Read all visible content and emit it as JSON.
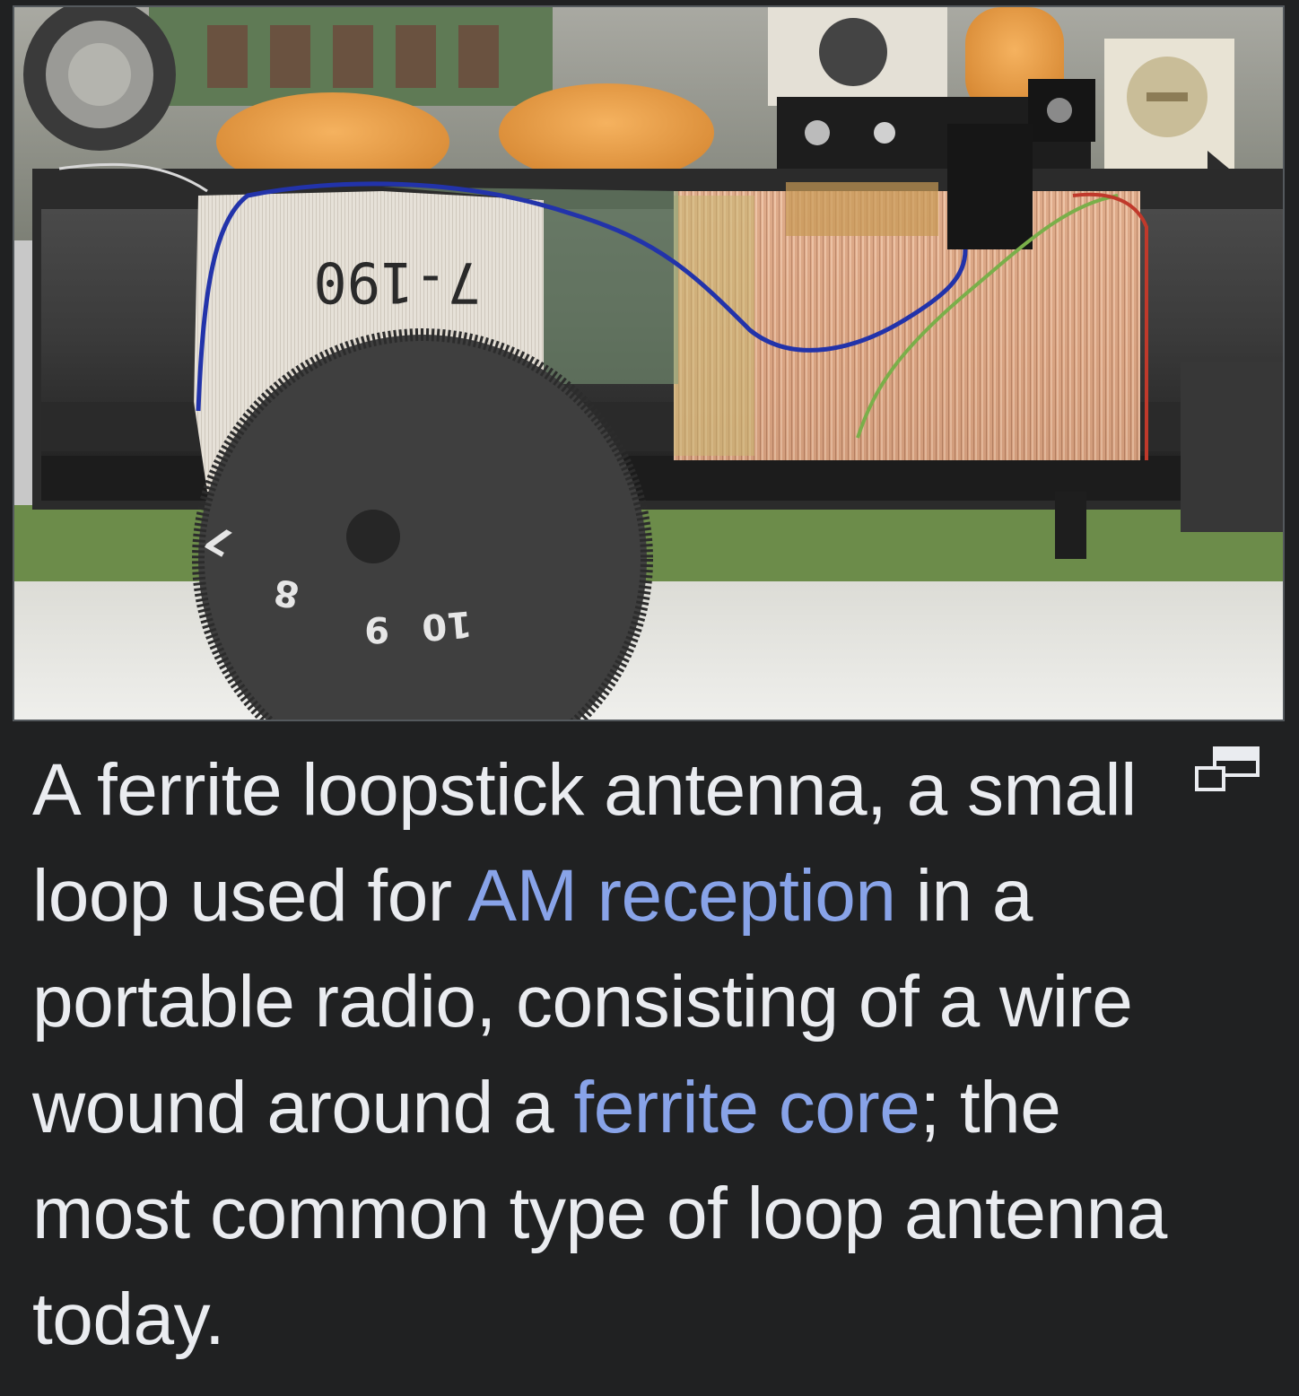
{
  "image": {
    "alt": "Ferrite loopstick antenna photograph",
    "tape_label": "7-190",
    "dial_numbers": [
      "7",
      "8",
      "9",
      "10"
    ]
  },
  "caption": {
    "part1": "A ferrite loopstick antenna, a small loop used for ",
    "link1": "AM reception",
    "part2": " in a portable radio, consisting of a wire wound around a ",
    "link2": "ferrite core",
    "part3": "; the most common type of loop antenna today."
  },
  "icons": {
    "enlarge": "enlarge-icon"
  },
  "colors": {
    "background": "#202122",
    "text": "#eaecf0",
    "link": "#88a3e8",
    "border": "#54595d"
  }
}
